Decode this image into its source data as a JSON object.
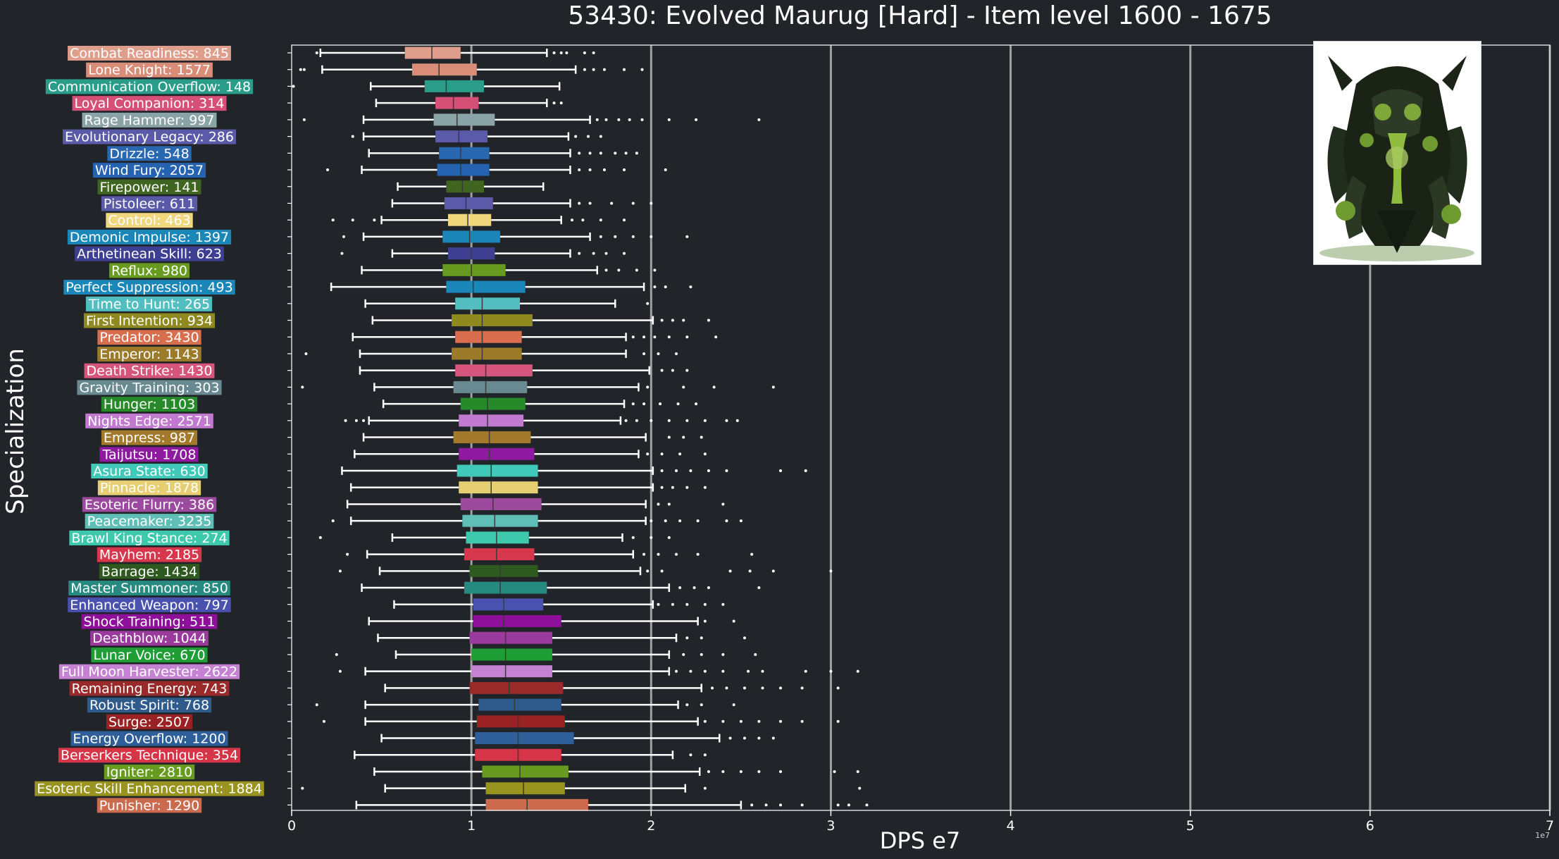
{
  "chart_data": {
    "type": "boxplot",
    "title": "53430: Evolved Maurug [Hard] - Item level 1600 - 1675",
    "xlabel": "DPS e7",
    "ylabel": "Specialization",
    "x_offset_label": "1e7",
    "xlim": [
      0,
      7
    ],
    "xticks": [
      0,
      1,
      2,
      3,
      4,
      5,
      6,
      7
    ],
    "grid": "vertical",
    "series": [
      {
        "label": "Combat Readiness: 845",
        "color": "#df9d8b",
        "whisker_low": 0.16,
        "q1": 0.63,
        "median": 0.78,
        "q3": 0.94,
        "whisker_high": 1.42,
        "outliers": [
          0.14,
          1.46,
          1.5,
          1.53,
          1.63,
          1.68
        ]
      },
      {
        "label": "Lone Knight: 1577",
        "color": "#d98c77",
        "whisker_low": 0.17,
        "q1": 0.67,
        "median": 0.82,
        "q3": 1.03,
        "whisker_high": 1.58,
        "outliers": [
          0.05,
          0.07,
          1.63,
          1.68,
          1.74,
          1.85,
          1.95
        ]
      },
      {
        "label": "Communication Overflow: 148",
        "color": "#2a9d8a",
        "whisker_low": 0.44,
        "q1": 0.74,
        "median": 0.86,
        "q3": 1.07,
        "whisker_high": 1.49,
        "outliers": [
          0.01
        ]
      },
      {
        "label": "Loyal Companion: 314",
        "color": "#d64f77",
        "whisker_low": 0.47,
        "q1": 0.8,
        "median": 0.9,
        "q3": 1.04,
        "whisker_high": 1.42,
        "outliers": [
          1.46,
          1.5
        ]
      },
      {
        "label": "Rage Hammer: 997",
        "color": "#8aa3a6",
        "whisker_low": 0.4,
        "q1": 0.79,
        "median": 0.92,
        "q3": 1.13,
        "whisker_high": 1.66,
        "outliers": [
          0.07,
          1.7,
          1.75,
          1.82,
          1.88,
          1.95,
          2.1,
          2.25,
          2.6
        ]
      },
      {
        "label": "Evolutionary Legacy: 286",
        "color": "#5a5aa8",
        "whisker_low": 0.4,
        "q1": 0.8,
        "median": 0.93,
        "q3": 1.09,
        "whisker_high": 1.54,
        "outliers": [
          0.34,
          1.58,
          1.65,
          1.72
        ]
      },
      {
        "label": "Drizzle: 548",
        "color": "#2a67b1",
        "whisker_low": 0.43,
        "q1": 0.82,
        "median": 0.94,
        "q3": 1.1,
        "whisker_high": 1.55,
        "outliers": [
          1.6,
          1.66,
          1.72,
          1.8,
          1.86,
          1.92
        ]
      },
      {
        "label": "Wind Fury: 2057",
        "color": "#2563b0",
        "whisker_low": 0.39,
        "q1": 0.81,
        "median": 0.94,
        "q3": 1.1,
        "whisker_high": 1.55,
        "outliers": [
          0.2,
          1.6,
          1.66,
          1.74,
          1.85,
          2.08
        ]
      },
      {
        "label": "Firepower: 141",
        "color": "#3f6520",
        "whisker_low": 0.59,
        "q1": 0.86,
        "median": 0.95,
        "q3": 1.07,
        "whisker_high": 1.4,
        "outliers": []
      },
      {
        "label": "Pistoleer: 611",
        "color": "#5a5aa8",
        "whisker_low": 0.56,
        "q1": 0.85,
        "median": 0.97,
        "q3": 1.12,
        "whisker_high": 1.55,
        "outliers": [
          1.6,
          1.66,
          1.78,
          1.9,
          2.0
        ]
      },
      {
        "label": "Control: 463",
        "color": "#f0d77d",
        "whisker_low": 0.5,
        "q1": 0.87,
        "median": 0.98,
        "q3": 1.11,
        "whisker_high": 1.5,
        "outliers": [
          0.23,
          0.34,
          0.46,
          1.56,
          1.62,
          1.72,
          1.85
        ]
      },
      {
        "label": "Demonic Impulse: 1397",
        "color": "#1a87b8",
        "whisker_low": 0.4,
        "q1": 0.84,
        "median": 0.99,
        "q3": 1.16,
        "whisker_high": 1.66,
        "outliers": [
          0.29,
          1.72,
          1.8,
          1.9,
          2.0,
          2.2
        ]
      },
      {
        "label": "Arthetinean Skill: 623",
        "color": "#3f3f92",
        "whisker_low": 0.56,
        "q1": 0.87,
        "median": 1.0,
        "q3": 1.13,
        "whisker_high": 1.55,
        "outliers": [
          0.28,
          1.6,
          1.68,
          1.75,
          1.85
        ]
      },
      {
        "label": "Reflux: 980",
        "color": "#679b1f",
        "whisker_low": 0.39,
        "q1": 0.84,
        "median": 1.0,
        "q3": 1.19,
        "whisker_high": 1.7,
        "outliers": [
          1.75,
          1.82,
          1.92,
          2.02
        ]
      },
      {
        "label": "Perfect Suppression: 493",
        "color": "#1a87b8",
        "whisker_low": 0.22,
        "q1": 0.86,
        "median": 1.01,
        "q3": 1.3,
        "whisker_high": 1.96,
        "outliers": [
          2.02,
          2.08,
          2.22
        ]
      },
      {
        "label": "Time to Hunt: 265",
        "color": "#52bec0",
        "whisker_low": 0.41,
        "q1": 0.91,
        "median": 1.06,
        "q3": 1.27,
        "whisker_high": 1.8,
        "outliers": [
          1.98
        ]
      },
      {
        "label": "First Intention: 934",
        "color": "#8e8a1f",
        "whisker_low": 0.45,
        "q1": 0.89,
        "median": 1.06,
        "q3": 1.34,
        "whisker_high": 2.01,
        "outliers": [
          2.06,
          2.12,
          2.18,
          2.32
        ]
      },
      {
        "label": "Predator: 3430",
        "color": "#d96e4e",
        "whisker_low": 0.34,
        "q1": 0.91,
        "median": 1.06,
        "q3": 1.28,
        "whisker_high": 1.86,
        "outliers": [
          1.9,
          1.96,
          2.02,
          2.1,
          2.2,
          2.36
        ]
      },
      {
        "label": "Emperor: 1143",
        "color": "#9b7a2a",
        "whisker_low": 0.38,
        "q1": 0.89,
        "median": 1.06,
        "q3": 1.28,
        "whisker_high": 1.86,
        "outliers": [
          0.08,
          1.96,
          2.04,
          2.14
        ]
      },
      {
        "label": "Death Strike: 1430",
        "color": "#d6557d",
        "whisker_low": 0.38,
        "q1": 0.91,
        "median": 1.08,
        "q3": 1.34,
        "whisker_high": 1.99,
        "outliers": [
          2.06,
          2.12,
          2.2
        ]
      },
      {
        "label": "Gravity Training: 303",
        "color": "#6a8a92",
        "whisker_low": 0.46,
        "q1": 0.9,
        "median": 1.08,
        "q3": 1.31,
        "whisker_high": 1.93,
        "outliers": [
          0.06,
          1.98,
          2.18,
          2.35,
          2.68
        ]
      },
      {
        "label": "Hunger: 1103",
        "color": "#278a2a",
        "whisker_low": 0.51,
        "q1": 0.94,
        "median": 1.09,
        "q3": 1.3,
        "whisker_high": 1.85,
        "outliers": [
          1.9,
          1.96,
          2.05,
          2.15,
          2.25
        ]
      },
      {
        "label": "Nights Edge: 2571",
        "color": "#c27ad0",
        "whisker_low": 0.43,
        "q1": 0.93,
        "median": 1.09,
        "q3": 1.29,
        "whisker_high": 1.83,
        "outliers": [
          0.3,
          0.36,
          0.4,
          1.86,
          1.92,
          2.0,
          2.1,
          2.2,
          2.3,
          2.42,
          2.48
        ]
      },
      {
        "label": "Empress: 987",
        "color": "#a37a2c",
        "whisker_low": 0.4,
        "q1": 0.9,
        "median": 1.1,
        "q3": 1.33,
        "whisker_high": 1.97,
        "outliers": [
          2.1,
          2.18,
          2.28
        ]
      },
      {
        "label": "Taijutsu: 1708",
        "color": "#8e1aa0",
        "whisker_low": 0.35,
        "q1": 0.93,
        "median": 1.1,
        "q3": 1.35,
        "whisker_high": 1.93,
        "outliers": [
          1.98,
          2.06,
          2.16,
          2.3
        ]
      },
      {
        "label": "Asura State: 630",
        "color": "#40c9b8",
        "whisker_low": 0.28,
        "q1": 0.92,
        "median": 1.11,
        "q3": 1.37,
        "whisker_high": 2.01,
        "outliers": [
          2.06,
          2.14,
          2.22,
          2.32,
          2.42,
          2.72,
          2.86
        ]
      },
      {
        "label": "Pinnacle: 1878",
        "color": "#e6cf72",
        "whisker_low": 0.33,
        "q1": 0.93,
        "median": 1.11,
        "q3": 1.37,
        "whisker_high": 2.01,
        "outliers": [
          2.06,
          2.12,
          2.2,
          2.3
        ]
      },
      {
        "label": "Esoteric Flurry: 386",
        "color": "#9b4a9e",
        "whisker_low": 0.31,
        "q1": 0.94,
        "median": 1.12,
        "q3": 1.39,
        "whisker_high": 1.97,
        "outliers": [
          2.04,
          2.1,
          2.4
        ]
      },
      {
        "label": "Peacemaker: 3235",
        "color": "#5fbfb6",
        "whisker_low": 0.33,
        "q1": 0.95,
        "median": 1.13,
        "q3": 1.37,
        "whisker_high": 1.97,
        "outliers": [
          0.23,
          2.0,
          2.08,
          2.16,
          2.26,
          2.42,
          2.5
        ]
      },
      {
        "label": "Brawl King Stance: 274",
        "color": "#3ec9ac",
        "whisker_low": 0.56,
        "q1": 0.97,
        "median": 1.14,
        "q3": 1.32,
        "whisker_high": 1.84,
        "outliers": [
          0.16,
          1.9,
          2.0,
          2.1
        ]
      },
      {
        "label": "Mayhem: 2185",
        "color": "#d6374c",
        "whisker_low": 0.42,
        "q1": 0.96,
        "median": 1.14,
        "q3": 1.35,
        "whisker_high": 1.9,
        "outliers": [
          0.31,
          1.96,
          2.04,
          2.14,
          2.26,
          2.56
        ]
      },
      {
        "label": "Barrage: 1434",
        "color": "#2f5a1f",
        "whisker_low": 0.49,
        "q1": 0.99,
        "median": 1.16,
        "q3": 1.37,
        "whisker_high": 1.94,
        "outliers": [
          0.27,
          1.98,
          2.06,
          2.44,
          2.55,
          2.68,
          3.0
        ]
      },
      {
        "label": "Master Summoner: 850",
        "color": "#268a80",
        "whisker_low": 0.39,
        "q1": 0.96,
        "median": 1.16,
        "q3": 1.42,
        "whisker_high": 2.1,
        "outliers": [
          2.16,
          2.24,
          2.32,
          2.6
        ]
      },
      {
        "label": "Enhanced Weapon: 797",
        "color": "#4a52b0",
        "whisker_low": 0.57,
        "q1": 1.01,
        "median": 1.18,
        "q3": 1.4,
        "whisker_high": 2.01,
        "outliers": [
          2.04,
          2.12,
          2.2,
          2.3,
          2.4
        ]
      },
      {
        "label": "Shock Training: 511",
        "color": "#8e0f9a",
        "whisker_low": 0.43,
        "q1": 1.01,
        "median": 1.18,
        "q3": 1.5,
        "whisker_high": 2.26,
        "outliers": [
          2.3,
          2.46
        ]
      },
      {
        "label": "Deathblow: 1044",
        "color": "#9a3a9c",
        "whisker_low": 0.48,
        "q1": 0.99,
        "median": 1.19,
        "q3": 1.45,
        "whisker_high": 2.14,
        "outliers": [
          2.2,
          2.28,
          2.52
        ]
      },
      {
        "label": "Lunar Voice: 670",
        "color": "#1f9e35",
        "whisker_low": 0.58,
        "q1": 1.0,
        "median": 1.19,
        "q3": 1.45,
        "whisker_high": 2.1,
        "outliers": [
          0.25,
          2.18,
          2.28,
          2.4,
          2.58
        ]
      },
      {
        "label": "Full Moon Harvester: 2622",
        "color": "#c682d2",
        "whisker_low": 0.41,
        "q1": 1.0,
        "median": 1.19,
        "q3": 1.45,
        "whisker_high": 2.1,
        "outliers": [
          0.27,
          2.14,
          2.22,
          2.3,
          2.4,
          2.54,
          2.62,
          2.86,
          3.0,
          3.15
        ]
      },
      {
        "label": "Remaining Energy: 743",
        "color": "#9a2a2a",
        "whisker_low": 0.52,
        "q1": 0.99,
        "median": 1.21,
        "q3": 1.51,
        "whisker_high": 2.28,
        "outliers": [
          2.34,
          2.42,
          2.52,
          2.62,
          2.72,
          2.84,
          3.04
        ]
      },
      {
        "label": "Robust Spirit: 768",
        "color": "#2f5a8c",
        "whisker_low": 0.41,
        "q1": 1.04,
        "median": 1.24,
        "q3": 1.5,
        "whisker_high": 2.15,
        "outliers": [
          0.14,
          2.2,
          2.28,
          2.46
        ]
      },
      {
        "label": "Surge: 2507",
        "color": "#9a2222",
        "whisker_low": 0.41,
        "q1": 1.03,
        "median": 1.26,
        "q3": 1.52,
        "whisker_high": 2.26,
        "outliers": [
          0.18,
          2.3,
          2.4,
          2.5,
          2.6,
          2.72,
          2.84,
          3.04
        ]
      },
      {
        "label": "Energy Overflow: 1200",
        "color": "#2f5f9a",
        "whisker_low": 0.5,
        "q1": 1.02,
        "median": 1.26,
        "q3": 1.57,
        "whisker_high": 2.38,
        "outliers": [
          2.44,
          2.52,
          2.6,
          2.68
        ]
      },
      {
        "label": "Berserkers Technique: 354",
        "color": "#d63548",
        "whisker_low": 0.35,
        "q1": 1.02,
        "median": 1.26,
        "q3": 1.5,
        "whisker_high": 2.12,
        "outliers": [
          2.22,
          2.3
        ]
      },
      {
        "label": "Igniter: 2810",
        "color": "#679b1f",
        "whisker_low": 0.46,
        "q1": 1.06,
        "median": 1.27,
        "q3": 1.54,
        "whisker_high": 2.27,
        "outliers": [
          2.32,
          2.4,
          2.5,
          2.6,
          2.72,
          3.02,
          3.15
        ]
      },
      {
        "label": "Esoteric Skill Enhancement: 1884",
        "color": "#99931f",
        "whisker_low": 0.52,
        "q1": 1.08,
        "median": 1.29,
        "q3": 1.52,
        "whisker_high": 2.19,
        "outliers": [
          0.06,
          2.3,
          3.16
        ]
      },
      {
        "label": "Punisher: 1290",
        "color": "#cc6a4e",
        "whisker_low": 0.36,
        "q1": 1.08,
        "median": 1.31,
        "q3": 1.65,
        "whisker_high": 2.5,
        "outliers": [
          2.56,
          2.64,
          2.72,
          2.84,
          3.04,
          3.1,
          3.2
        ]
      }
    ]
  },
  "boss_image": {
    "icon": "boss-portrait-icon",
    "colors": {
      "armor": "#1f2a18",
      "glow": "#7fa83a",
      "highlight": "#a8c860"
    }
  }
}
